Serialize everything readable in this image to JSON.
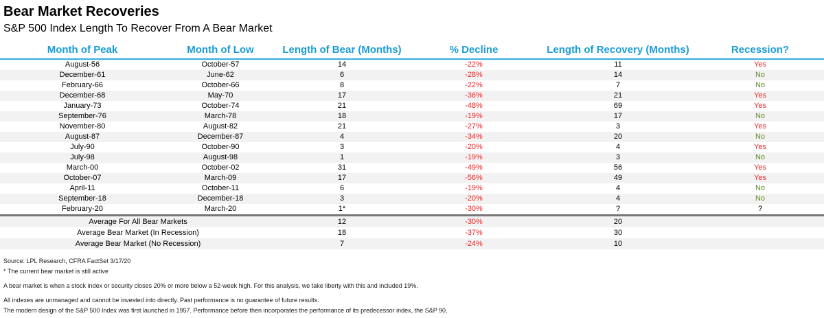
{
  "title": "Bear Market Recoveries",
  "subtitle": "S&P 500 Index Length To Recover From A Bear Market",
  "chart_data": {
    "type": "table",
    "title": "Bear Market Recoveries",
    "subtitle": "S&P 500 Index Length To Recover From A Bear Market",
    "columns": [
      "Month of Peak",
      "Month of Low",
      "Length of Bear (Months)",
      "% Decline",
      "Length of Recovery (Months)",
      "Recession?"
    ],
    "rows": [
      {
        "peak": "August-56",
        "low": "October-57",
        "bear_months": "14",
        "decline_pct": "-22%",
        "recovery_months": "11",
        "recession": "Yes"
      },
      {
        "peak": "December-61",
        "low": "June-62",
        "bear_months": "6",
        "decline_pct": "-28%",
        "recovery_months": "14",
        "recession": "No"
      },
      {
        "peak": "February-66",
        "low": "October-66",
        "bear_months": "8",
        "decline_pct": "-22%",
        "recovery_months": "7",
        "recession": "No"
      },
      {
        "peak": "December-68",
        "low": "May-70",
        "bear_months": "17",
        "decline_pct": "-36%",
        "recovery_months": "21",
        "recession": "Yes"
      },
      {
        "peak": "January-73",
        "low": "October-74",
        "bear_months": "21",
        "decline_pct": "-48%",
        "recovery_months": "69",
        "recession": "Yes"
      },
      {
        "peak": "September-76",
        "low": "March-78",
        "bear_months": "18",
        "decline_pct": "-19%",
        "recovery_months": "17",
        "recession": "No"
      },
      {
        "peak": "November-80",
        "low": "August-82",
        "bear_months": "21",
        "decline_pct": "-27%",
        "recovery_months": "3",
        "recession": "Yes"
      },
      {
        "peak": "August-87",
        "low": "December-87",
        "bear_months": "4",
        "decline_pct": "-34%",
        "recovery_months": "20",
        "recession": "No"
      },
      {
        "peak": "July-90",
        "low": "October-90",
        "bear_months": "3",
        "decline_pct": "-20%",
        "recovery_months": "4",
        "recession": "Yes"
      },
      {
        "peak": "July-98",
        "low": "August-98",
        "bear_months": "1",
        "decline_pct": "-19%",
        "recovery_months": "3",
        "recession": "No"
      },
      {
        "peak": "March-00",
        "low": "October-02",
        "bear_months": "31",
        "decline_pct": "-49%",
        "recovery_months": "56",
        "recession": "Yes"
      },
      {
        "peak": "October-07",
        "low": "March-09",
        "bear_months": "17",
        "decline_pct": "-56%",
        "recovery_months": "49",
        "recession": "Yes"
      },
      {
        "peak": "April-11",
        "low": "October-11",
        "bear_months": "6",
        "decline_pct": "-19%",
        "recovery_months": "4",
        "recession": "No"
      },
      {
        "peak": "September-18",
        "low": "December-18",
        "bear_months": "3",
        "decline_pct": "-20%",
        "recovery_months": "4",
        "recession": "No"
      },
      {
        "peak": "February-20",
        "low": "March-20",
        "bear_months": "1*",
        "decline_pct": "-30%",
        "recovery_months": "?",
        "recession": "?"
      }
    ],
    "summary_rows": [
      {
        "label": "Average For All Bear Markets",
        "bear_months": "12",
        "decline_pct": "-30%",
        "recovery_months": "20",
        "recession": ""
      },
      {
        "label": "Average Bear Market (In Recession)",
        "bear_months": "18",
        "decline_pct": "-37%",
        "recovery_months": "30",
        "recession": ""
      },
      {
        "label": "Average Bear Market (No Recession)",
        "bear_months": "7",
        "decline_pct": "-24%",
        "recovery_months": "10",
        "recession": ""
      }
    ]
  },
  "footnotes": [
    "Source: LPL Research, CFRA FactSet 3/17/20",
    "* The current bear market is still active",
    "A bear market is when a stock index or security closes 20% or more below a 52-week high. For this analysis, we take liberty with this and included 19%.",
    "All indexes are unmanaged and cannot be invested into directly. Past performance is no guarantee of future results.",
    "The modern design of the S&P 500 Index was first launched in 1957. Performance before then incorporates the performance of its predecessor index, the S&P 90."
  ],
  "colors": {
    "header_blue": "#1A9CD8",
    "header_rule_blue": "#36ACE1",
    "negative_red": "#EE2524",
    "recession_yes_red": "#EE2524",
    "recession_no_green": "#5D8B28",
    "row_stripe_gray": "#F2F2F2",
    "summary_separator_gray": "#777777",
    "title_black": "#000000"
  }
}
